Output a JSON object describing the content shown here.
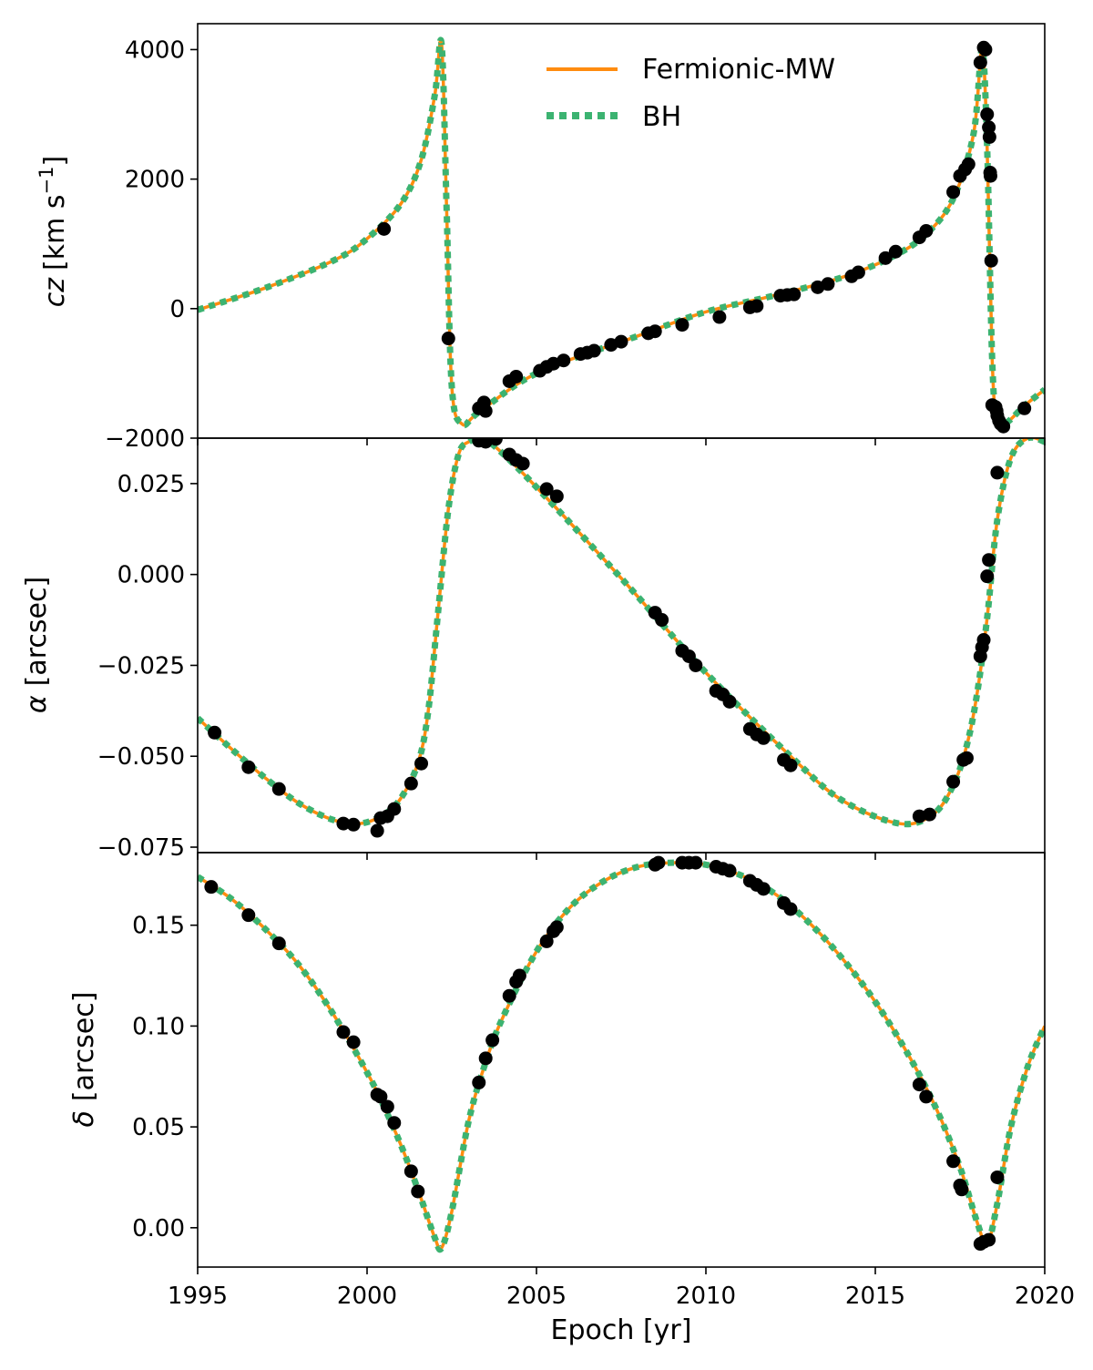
{
  "colors": {
    "fermionic": "#ff8c0f",
    "bh": "#3cb371",
    "points": "#000000"
  },
  "legend": {
    "items": [
      {
        "label": "Fermionic-MW",
        "style": "solid",
        "color": "#ff8c0f"
      },
      {
        "label": "BH",
        "style": "dotted",
        "color": "#3cb371"
      }
    ]
  },
  "xaxis": {
    "label": "Epoch [yr]",
    "ticks": [
      "1995",
      "2000",
      "2005",
      "2010",
      "2015",
      "2020"
    ]
  },
  "chart_data": [
    {
      "type": "line",
      "ylabel_main": "cz",
      "ylabel_unit": "[km s",
      "ylabel_sup": "−1",
      "ylabel_end": "]",
      "xlim": [
        1995,
        2020
      ],
      "ylim": [
        -2000,
        4400
      ],
      "yticks": [
        -2000,
        0,
        2000,
        4000
      ],
      "ytick_labels": [
        "−2000",
        "0",
        "2000",
        "4000"
      ],
      "series": [
        {
          "name": "Fermionic-MW",
          "x": [
            1995,
            1997,
            1999,
            2000,
            2001,
            2001.6,
            2002.0,
            2002.2,
            2002.35,
            2002.5,
            2002.8,
            2003.3,
            2005,
            2008,
            2010,
            2012,
            2014,
            2015.5,
            2016.5,
            2017.3,
            2017.9,
            2018.15,
            2018.3,
            2018.45,
            2018.6,
            2018.9,
            2019.4,
            2020
          ],
          "y": [
            -20,
            320,
            740,
            1080,
            1620,
            2300,
            3300,
            4080,
            1500,
            -1200,
            -1780,
            -1600,
            -1000,
            -420,
            -50,
            200,
            480,
            800,
            1150,
            1700,
            2700,
            4000,
            2500,
            -800,
            -1750,
            -1750,
            -1500,
            -1250
          ]
        },
        {
          "name": "BH",
          "x": [
            1995,
            1997,
            1999,
            2000,
            2001,
            2001.6,
            2002.0,
            2002.2,
            2002.35,
            2002.5,
            2002.8,
            2003.3,
            2005,
            2008,
            2010,
            2012,
            2014,
            2015.5,
            2016.5,
            2017.3,
            2017.9,
            2018.15,
            2018.3,
            2018.45,
            2018.6,
            2018.9,
            2019.4,
            2020
          ],
          "y": [
            -20,
            320,
            740,
            1080,
            1620,
            2300,
            3300,
            4080,
            1500,
            -1200,
            -1780,
            -1600,
            -1000,
            -420,
            -50,
            200,
            480,
            800,
            1150,
            1700,
            2700,
            4000,
            2500,
            -800,
            -1750,
            -1750,
            -1500,
            -1250
          ]
        }
      ],
      "points": {
        "x": [
          2000.5,
          2002.4,
          2003.3,
          2003.45,
          2003.5,
          2004.2,
          2004.4,
          2005.1,
          2005.3,
          2005.5,
          2005.8,
          2006.3,
          2006.5,
          2006.7,
          2007.2,
          2007.5,
          2008.3,
          2008.5,
          2009.3,
          2010.4,
          2011.3,
          2011.5,
          2012.2,
          2012.4,
          2012.6,
          2013.3,
          2013.6,
          2014.3,
          2014.5,
          2015.3,
          2015.6,
          2016.3,
          2016.5,
          2017.3,
          2017.5,
          2017.65,
          2017.75,
          2018.1,
          2018.2,
          2018.25,
          2018.3,
          2018.35,
          2018.37,
          2018.39,
          2018.4,
          2018.42,
          2018.45,
          2018.55,
          2018.58,
          2018.6,
          2018.65,
          2018.7,
          2018.78,
          2019.4
        ],
        "y": [
          1230,
          -460,
          -1540,
          -1450,
          -1580,
          -1120,
          -1050,
          -960,
          -900,
          -850,
          -800,
          -700,
          -680,
          -650,
          -560,
          -510,
          -380,
          -350,
          -250,
          -130,
          20,
          40,
          200,
          210,
          220,
          330,
          380,
          500,
          560,
          780,
          880,
          1100,
          1200,
          1800,
          2050,
          2150,
          2230,
          3800,
          4030,
          4000,
          3000,
          2800,
          2650,
          2100,
          2050,
          740,
          -1490,
          -1520,
          -1580,
          -1650,
          -1730,
          -1780,
          -1820,
          -1540
        ]
      }
    },
    {
      "type": "line",
      "ylabel_main": "α",
      "ylabel_unit": "[arcsec]",
      "xlim": [
        1995,
        2020
      ],
      "ylim": [
        -0.0765,
        0.0375
      ],
      "yticks": [
        -0.075,
        -0.05,
        -0.025,
        0.0,
        0.025
      ],
      "ytick_labels": [
        "−0.075",
        "−0.050",
        "−0.025",
        "0.000",
        "0.025"
      ],
      "series": [
        {
          "name": "Fermionic-MW",
          "x": [
            1995,
            1996,
            1997,
            1998,
            1999,
            1999.8,
            2000.5,
            2001,
            2001.5,
            2001.8,
            2002.1,
            2002.4,
            2002.7,
            2003,
            2003.4,
            2003.8,
            2005,
            2007.5,
            2010,
            2012.5,
            2014,
            2015.7,
            2016.7,
            2017.3,
            2017.7,
            2018,
            2018.3,
            2018.6,
            2019,
            2019.5,
            2020
          ],
          "y": [
            -0.0395,
            -0.048,
            -0.056,
            -0.063,
            -0.0675,
            -0.0685,
            -0.066,
            -0.0615,
            -0.052,
            -0.038,
            -0.01,
            0.018,
            0.033,
            0.0365,
            0.0372,
            0.035,
            0.024,
            -0.001,
            -0.027,
            -0.05,
            -0.062,
            -0.0685,
            -0.066,
            -0.058,
            -0.047,
            -0.033,
            -0.012,
            0.015,
            0.032,
            0.0375,
            0.0365
          ]
        },
        {
          "name": "BH",
          "x": [
            1995,
            1996,
            1997,
            1998,
            1999,
            1999.8,
            2000.5,
            2001,
            2001.5,
            2001.8,
            2002.1,
            2002.4,
            2002.7,
            2003,
            2003.4,
            2003.8,
            2005,
            2007.5,
            2010,
            2012.5,
            2014,
            2015.7,
            2016.7,
            2017.3,
            2017.7,
            2018,
            2018.3,
            2018.6,
            2019,
            2019.5,
            2020
          ],
          "y": [
            -0.0395,
            -0.048,
            -0.056,
            -0.063,
            -0.0675,
            -0.0685,
            -0.066,
            -0.0615,
            -0.052,
            -0.038,
            -0.01,
            0.018,
            0.033,
            0.0365,
            0.0372,
            0.035,
            0.024,
            -0.001,
            -0.027,
            -0.05,
            -0.062,
            -0.0685,
            -0.066,
            -0.058,
            -0.047,
            -0.033,
            -0.012,
            0.015,
            0.032,
            0.0375,
            0.0365
          ]
        }
      ],
      "points": {
        "x": [
          1995.5,
          1996.5,
          1997.4,
          1999.3,
          1999.6,
          2000.3,
          2000.4,
          2000.6,
          2000.8,
          2001.3,
          2001.6,
          2003.3,
          2003.5,
          2003.8,
          2004.2,
          2004.4,
          2004.6,
          2005.3,
          2005.6,
          2008.5,
          2008.7,
          2009.3,
          2009.5,
          2009.7,
          2010.3,
          2010.5,
          2010.7,
          2011.3,
          2011.5,
          2011.7,
          2012.3,
          2012.5,
          2016.3,
          2016.6,
          2017.3,
          2017.6,
          2017.7,
          2018.1,
          2018.15,
          2018.2,
          2018.3,
          2018.35,
          2018.6
        ],
        "y": [
          -0.0435,
          -0.053,
          -0.059,
          -0.0685,
          -0.0688,
          -0.0705,
          -0.067,
          -0.0665,
          -0.0645,
          -0.0575,
          -0.052,
          0.0368,
          0.0365,
          0.0373,
          0.033,
          0.0315,
          0.0305,
          0.0235,
          0.0215,
          -0.0105,
          -0.0125,
          -0.021,
          -0.0225,
          -0.025,
          -0.032,
          -0.033,
          -0.035,
          -0.0425,
          -0.044,
          -0.045,
          -0.051,
          -0.0525,
          -0.0665,
          -0.066,
          -0.057,
          -0.051,
          -0.0505,
          -0.0225,
          -0.02,
          -0.018,
          -0.0005,
          0.004,
          0.028
        ]
      }
    },
    {
      "type": "line",
      "ylabel_main": "δ",
      "ylabel_unit": "[arcsec]",
      "xlim": [
        1995,
        2020
      ],
      "ylim": [
        -0.0195,
        0.186
      ],
      "yticks": [
        0.0,
        0.05,
        0.1,
        0.15
      ],
      "ytick_labels": [
        "0.00",
        "0.05",
        "0.10",
        "0.15"
      ],
      "series": [
        {
          "name": "Fermionic-MW",
          "x": [
            1995,
            1996,
            1997,
            1998,
            1999,
            2000,
            2000.5,
            2001,
            2001.5,
            2002,
            2002.2,
            2002.5,
            2003,
            2003.5,
            2004,
            2005,
            2006,
            2007,
            2008,
            2009,
            2010,
            2011,
            2012,
            2013,
            2014,
            2015,
            2016,
            2016.8,
            2017.5,
            2018,
            2018.3,
            2018.6,
            2019,
            2019.5,
            2020
          ],
          "y": [
            0.174,
            0.163,
            0.148,
            0.13,
            0.106,
            0.077,
            0.06,
            0.041,
            0.019,
            -0.005,
            -0.01,
            0.008,
            0.053,
            0.082,
            0.104,
            0.137,
            0.159,
            0.172,
            0.179,
            0.181,
            0.18,
            0.175,
            0.166,
            0.152,
            0.134,
            0.112,
            0.085,
            0.059,
            0.03,
            0.003,
            -0.008,
            0.012,
            0.05,
            0.08,
            0.1
          ]
        },
        {
          "name": "BH",
          "x": [
            1995,
            1996,
            1997,
            1998,
            1999,
            2000,
            2000.5,
            2001,
            2001.5,
            2002,
            2002.2,
            2002.5,
            2003,
            2003.5,
            2004,
            2005,
            2006,
            2007,
            2008,
            2009,
            2010,
            2011,
            2012,
            2013,
            2014,
            2015,
            2016,
            2016.8,
            2017.5,
            2018,
            2018.3,
            2018.6,
            2019,
            2019.5,
            2020
          ],
          "y": [
            0.174,
            0.163,
            0.148,
            0.13,
            0.106,
            0.077,
            0.06,
            0.041,
            0.019,
            -0.005,
            -0.01,
            0.008,
            0.053,
            0.082,
            0.104,
            0.137,
            0.159,
            0.172,
            0.179,
            0.181,
            0.18,
            0.175,
            0.166,
            0.152,
            0.134,
            0.112,
            0.085,
            0.059,
            0.03,
            0.003,
            -0.008,
            0.012,
            0.05,
            0.08,
            0.1
          ]
        }
      ],
      "points": {
        "x": [
          1995.4,
          1996.5,
          1997.4,
          1999.3,
          1999.6,
          2000.3,
          2000.4,
          2000.6,
          2000.8,
          2001.3,
          2001.5,
          2003.3,
          2003.5,
          2003.7,
          2004.2,
          2004.4,
          2004.5,
          2005.3,
          2005.5,
          2005.6,
          2008.5,
          2008.6,
          2009.3,
          2009.5,
          2009.7,
          2010.3,
          2010.5,
          2010.7,
          2011.3,
          2011.5,
          2011.7,
          2012.3,
          2012.5,
          2016.3,
          2016.5,
          2017.3,
          2017.5,
          2017.55,
          2018.1,
          2018.2,
          2018.35,
          2018.6
        ],
        "y": [
          0.169,
          0.155,
          0.141,
          0.097,
          0.092,
          0.066,
          0.065,
          0.06,
          0.052,
          0.028,
          0.018,
          0.072,
          0.084,
          0.093,
          0.115,
          0.122,
          0.125,
          0.142,
          0.147,
          0.149,
          0.18,
          0.181,
          0.181,
          0.181,
          0.181,
          0.179,
          0.178,
          0.177,
          0.172,
          0.17,
          0.168,
          0.161,
          0.158,
          0.071,
          0.065,
          0.033,
          0.021,
          0.019,
          -0.008,
          -0.007,
          -0.006,
          0.025
        ]
      }
    }
  ]
}
